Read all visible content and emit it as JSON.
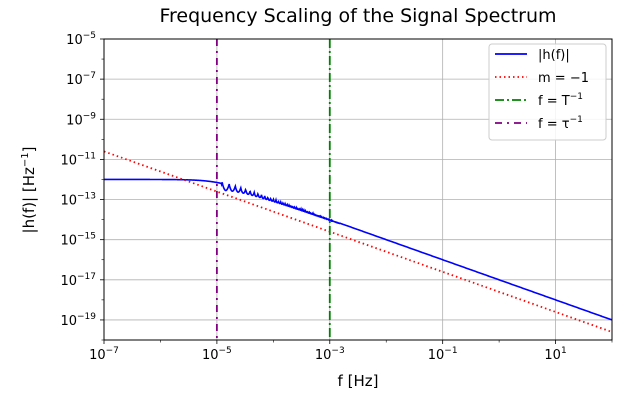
{
  "chart_data": {
    "type": "line",
    "title": "Frequency Scaling of the Signal Spectrum",
    "xlabel": "f [Hz]",
    "ylabel": "|h(f)| [Hz",
    "ylabel_exponent": "−1",
    "ylabel_close": "]",
    "xscale": "log",
    "yscale": "log",
    "xlim": [
      1e-07,
      100
    ],
    "ylim": [
      1e-20,
      1e-05
    ],
    "grid": true,
    "legend_position": "top-right",
    "x_ticks": [
      {
        "value": 1e-07,
        "base": "10",
        "exp": "−7"
      },
      {
        "value": 1e-05,
        "base": "10",
        "exp": "−5"
      },
      {
        "value": 0.001,
        "base": "10",
        "exp": "−3"
      },
      {
        "value": 0.1,
        "base": "10",
        "exp": "−1"
      },
      {
        "value": 10,
        "base": "10",
        "exp": "1"
      }
    ],
    "y_ticks": [
      {
        "value": 1e-19,
        "base": "10",
        "exp": "−19"
      },
      {
        "value": 1e-17,
        "base": "10",
        "exp": "−17"
      },
      {
        "value": 1e-15,
        "base": "10",
        "exp": "−15"
      },
      {
        "value": 1e-13,
        "base": "10",
        "exp": "−13"
      },
      {
        "value": 1e-11,
        "base": "10",
        "exp": "−11"
      },
      {
        "value": 1e-09,
        "base": "10",
        "exp": "−9"
      },
      {
        "value": 1e-07,
        "base": "10",
        "exp": "−7"
      },
      {
        "value": 1e-05,
        "base": "10",
        "exp": "−5"
      }
    ],
    "series": [
      {
        "name": "|h(f)|",
        "color": "#0000ff",
        "style": "solid",
        "model": {
          "plateau": 1e-12,
          "knee_f": 1e-05,
          "exponent": -1,
          "oscillation_start_f": 1.2e-05,
          "oscillation_end_f": 0.0015
        },
        "points": [
          [
            1e-07,
            1e-12
          ],
          [
            1e-06,
            1e-12
          ],
          [
            5e-06,
            9.8e-13
          ],
          [
            8e-06,
            8e-13
          ],
          [
            1e-05,
            7e-13
          ],
          [
            1.2e-05,
            4e-13
          ],
          [
            1.4e-05,
            1e-13
          ],
          [
            1.7e-05,
            3e-13
          ],
          [
            2e-05,
            2.2e-13
          ],
          [
            3e-05,
            1.5e-13
          ],
          [
            0.0001,
            4e-14
          ],
          [
            0.0003,
            1e-14
          ],
          [
            0.001,
            3e-15
          ],
          [
            0.1,
            1e-16
          ],
          [
            10,
            1e-18
          ],
          [
            100,
            1e-20
          ]
        ]
      },
      {
        "name": "m = −1",
        "color": "#ff0000",
        "style": "dotted",
        "points": [
          [
            1e-07,
            2.5e-11
          ],
          [
            100,
            2.5e-20
          ]
        ]
      },
      {
        "name": "f = T",
        "name_exponent": "−1",
        "color": "#008000",
        "style": "dashdot",
        "x": 0.001
      },
      {
        "name": "f = τ",
        "name_exponent": "−1",
        "color": "#800080",
        "style": "loosely-dashdot",
        "x": 1e-05
      }
    ]
  }
}
